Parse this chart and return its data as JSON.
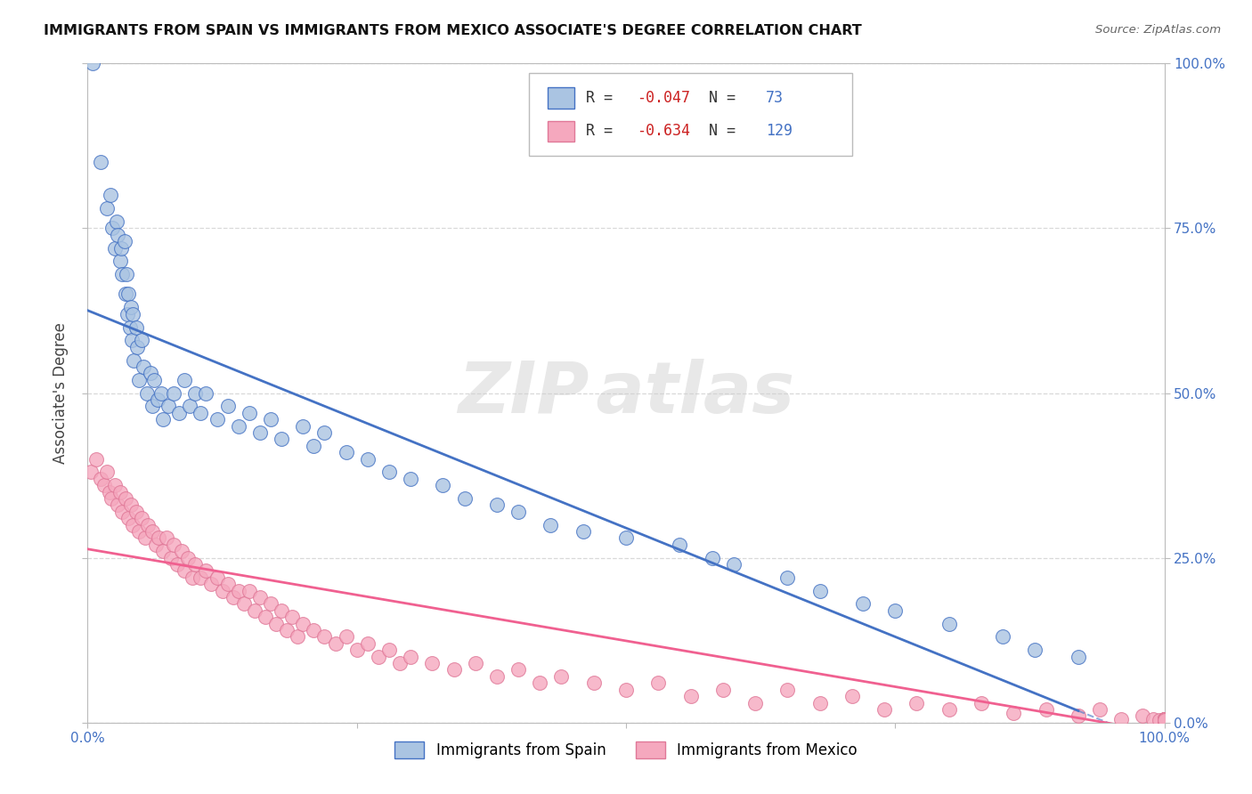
{
  "title": "IMMIGRANTS FROM SPAIN VS IMMIGRANTS FROM MEXICO ASSOCIATE'S DEGREE CORRELATION CHART",
  "source": "Source: ZipAtlas.com",
  "ylabel": "Associate's Degree",
  "r_spain": -0.047,
  "n_spain": 73,
  "r_mexico": -0.634,
  "n_mexico": 129,
  "legend_labels": [
    "Immigrants from Spain",
    "Immigrants from Mexico"
  ],
  "color_spain": "#aac4e2",
  "color_mexico": "#f5a8be",
  "line_color_spain": "#4472c4",
  "line_color_mexico": "#f06090",
  "background_color": "#ffffff",
  "grid_color": "#d0d0d0",
  "legend_r_color": "#cc0000",
  "legend_n_color": "#4472c4",
  "ytick_color": "#4472c4",
  "xtick_color": "#4472c4",
  "spain_x": [
    0.5,
    1.2,
    1.8,
    2.1,
    2.3,
    2.5,
    2.7,
    2.8,
    3.0,
    3.1,
    3.2,
    3.4,
    3.5,
    3.6,
    3.7,
    3.8,
    3.9,
    4.0,
    4.1,
    4.2,
    4.3,
    4.5,
    4.6,
    4.8,
    5.0,
    5.2,
    5.5,
    5.8,
    6.0,
    6.2,
    6.5,
    6.8,
    7.0,
    7.5,
    8.0,
    8.5,
    9.0,
    9.5,
    10.0,
    10.5,
    11.0,
    12.0,
    13.0,
    14.0,
    15.0,
    16.0,
    17.0,
    18.0,
    20.0,
    21.0,
    22.0,
    24.0,
    26.0,
    28.0,
    30.0,
    33.0,
    35.0,
    38.0,
    40.0,
    43.0,
    46.0,
    50.0,
    55.0,
    58.0,
    60.0,
    65.0,
    68.0,
    72.0,
    75.0,
    80.0,
    85.0,
    88.0,
    92.0
  ],
  "spain_y": [
    100.0,
    85.0,
    78.0,
    80.0,
    75.0,
    72.0,
    76.0,
    74.0,
    70.0,
    72.0,
    68.0,
    73.0,
    65.0,
    68.0,
    62.0,
    65.0,
    60.0,
    63.0,
    58.0,
    62.0,
    55.0,
    60.0,
    57.0,
    52.0,
    58.0,
    54.0,
    50.0,
    53.0,
    48.0,
    52.0,
    49.0,
    50.0,
    46.0,
    48.0,
    50.0,
    47.0,
    52.0,
    48.0,
    50.0,
    47.0,
    50.0,
    46.0,
    48.0,
    45.0,
    47.0,
    44.0,
    46.0,
    43.0,
    45.0,
    42.0,
    44.0,
    41.0,
    40.0,
    38.0,
    37.0,
    36.0,
    34.0,
    33.0,
    32.0,
    30.0,
    29.0,
    28.0,
    27.0,
    25.0,
    24.0,
    22.0,
    20.0,
    18.0,
    17.0,
    15.0,
    13.0,
    11.0,
    10.0
  ],
  "mexico_x": [
    0.3,
    0.8,
    1.2,
    1.5,
    1.8,
    2.0,
    2.2,
    2.5,
    2.8,
    3.0,
    3.2,
    3.5,
    3.8,
    4.0,
    4.2,
    4.5,
    4.8,
    5.0,
    5.3,
    5.6,
    6.0,
    6.3,
    6.6,
    7.0,
    7.3,
    7.7,
    8.0,
    8.3,
    8.7,
    9.0,
    9.3,
    9.7,
    10.0,
    10.5,
    11.0,
    11.5,
    12.0,
    12.5,
    13.0,
    13.5,
    14.0,
    14.5,
    15.0,
    15.5,
    16.0,
    16.5,
    17.0,
    17.5,
    18.0,
    18.5,
    19.0,
    19.5,
    20.0,
    21.0,
    22.0,
    23.0,
    24.0,
    25.0,
    26.0,
    27.0,
    28.0,
    29.0,
    30.0,
    32.0,
    34.0,
    36.0,
    38.0,
    40.0,
    42.0,
    44.0,
    47.0,
    50.0,
    53.0,
    56.0,
    59.0,
    62.0,
    65.0,
    68.0,
    71.0,
    74.0,
    77.0,
    80.0,
    83.0,
    86.0,
    89.0,
    92.0,
    94.0,
    96.0,
    98.0,
    99.0,
    99.5,
    100.0,
    100.0,
    100.0,
    100.0,
    100.0,
    100.0,
    100.0,
    100.0,
    100.0,
    100.0,
    100.0,
    100.0,
    100.0,
    100.0,
    100.0,
    100.0,
    100.0,
    100.0,
    100.0,
    100.0,
    100.0,
    100.0,
    100.0,
    100.0,
    100.0,
    100.0,
    100.0,
    100.0,
    100.0,
    100.0,
    100.0,
    100.0,
    100.0,
    100.0,
    100.0,
    100.0,
    100.0,
    100.0
  ],
  "mexico_y": [
    38.0,
    40.0,
    37.0,
    36.0,
    38.0,
    35.0,
    34.0,
    36.0,
    33.0,
    35.0,
    32.0,
    34.0,
    31.0,
    33.0,
    30.0,
    32.0,
    29.0,
    31.0,
    28.0,
    30.0,
    29.0,
    27.0,
    28.0,
    26.0,
    28.0,
    25.0,
    27.0,
    24.0,
    26.0,
    23.0,
    25.0,
    22.0,
    24.0,
    22.0,
    23.0,
    21.0,
    22.0,
    20.0,
    21.0,
    19.0,
    20.0,
    18.0,
    20.0,
    17.0,
    19.0,
    16.0,
    18.0,
    15.0,
    17.0,
    14.0,
    16.0,
    13.0,
    15.0,
    14.0,
    13.0,
    12.0,
    13.0,
    11.0,
    12.0,
    10.0,
    11.0,
    9.0,
    10.0,
    9.0,
    8.0,
    9.0,
    7.0,
    8.0,
    6.0,
    7.0,
    6.0,
    5.0,
    6.0,
    4.0,
    5.0,
    3.0,
    5.0,
    3.0,
    4.0,
    2.0,
    3.0,
    2.0,
    3.0,
    1.5,
    2.0,
    1.0,
    2.0,
    0.5,
    1.0,
    0.5,
    0.3,
    0.5,
    0.3,
    0.5,
    0.3,
    0.5,
    0.3,
    0.5,
    0.3,
    0.5,
    0.3,
    0.5,
    0.3,
    0.5,
    0.3,
    0.5,
    0.3,
    0.5,
    0.3,
    0.5,
    0.3,
    0.5,
    0.3,
    0.5,
    0.3,
    0.5,
    0.3,
    0.5,
    0.3,
    0.5,
    0.3,
    0.5,
    0.3,
    0.5,
    0.3,
    0.5,
    0.3,
    0.5,
    0.3
  ]
}
